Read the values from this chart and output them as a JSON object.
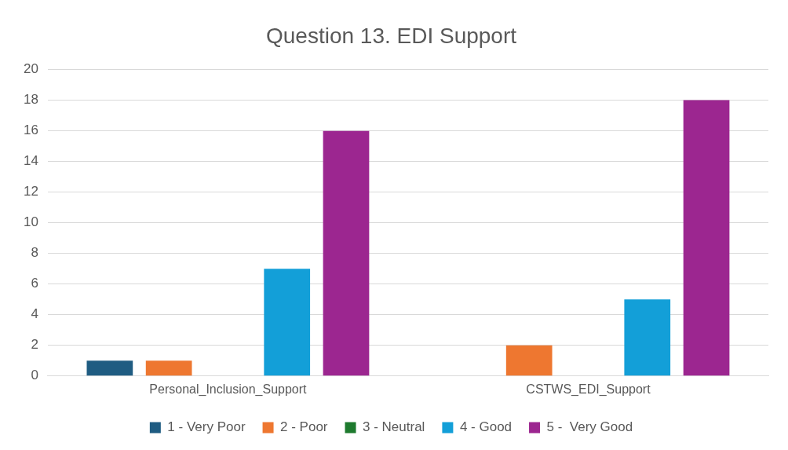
{
  "chart_data": {
    "type": "bar",
    "title": "Question 13. EDI Support",
    "categories": [
      "Personal_Inclusion_Support",
      "CSTWS_EDI_Support"
    ],
    "series": [
      {
        "name": "1 - Very Poor",
        "color": "#1f5c82",
        "values": [
          1,
          0
        ]
      },
      {
        "name": "2 - Poor",
        "color": "#ee7730",
        "values": [
          1,
          2
        ]
      },
      {
        "name": "3 - Neutral",
        "color": "#1e7a2e",
        "values": [
          0,
          0
        ]
      },
      {
        "name": "4 - Good",
        "color": "#139fd8",
        "values": [
          7,
          5
        ]
      },
      {
        "name": "5 -  Very Good",
        "color": "#9c2690",
        "values": [
          16,
          18
        ]
      }
    ],
    "ylim": [
      0,
      20
    ],
    "yticks": [
      0,
      2,
      4,
      6,
      8,
      10,
      12,
      14,
      16,
      18,
      20
    ],
    "grid": "y",
    "legend": "bottom"
  }
}
